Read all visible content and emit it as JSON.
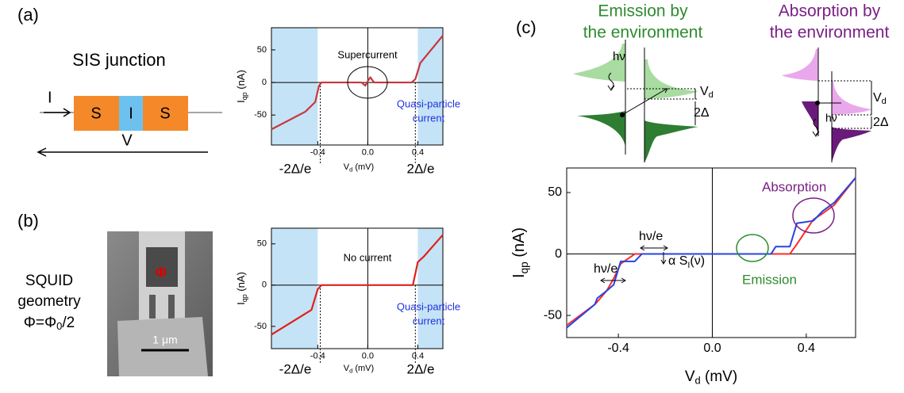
{
  "panel_labels": [
    "(a)",
    "(b)",
    "(c)"
  ],
  "sis": {
    "title": "SIS junction",
    "current": "I",
    "blocks": [
      "S",
      "I",
      "S"
    ],
    "voltage": "V"
  },
  "squid": {
    "lines": [
      "SQUID",
      "geometry"
    ],
    "flux": [
      "Φ=Φ",
      "0",
      "/2"
    ],
    "phi": "Φ",
    "scale": "1 μm"
  },
  "schematic": {
    "emission": [
      "Emission by",
      "the environment"
    ],
    "absorption": [
      "Absorption by",
      "the environment"
    ],
    "hv": "hν",
    "vd": [
      "V",
      "d"
    ],
    "gap": "2Δ"
  },
  "chart_data": [
    {
      "type": "line",
      "xlabel": [
        "V",
        "d",
        " (mV)"
      ],
      "ylabel": [
        "I",
        "qp",
        " (nA)"
      ],
      "xlim": [
        -0.77,
        0.6
      ],
      "ylim": [
        -96,
        84
      ],
      "xticks": [
        -0.4,
        {
          "value": 0,
          "label": "0.0"
        },
        0.4
      ],
      "yticks": [
        -50,
        0,
        50
      ],
      "zero_lines": true,
      "shade": [
        [
          -0.77,
          -0.4
        ],
        [
          0.4,
          0.6
        ]
      ],
      "shade_color": "#c5e3f6",
      "gap_lines": [
        -0.38,
        0.38
      ],
      "x": [
        -0.77,
        -0.5,
        -0.42,
        -0.39,
        -0.37,
        -0.05,
        -0.02,
        0,
        0.02,
        0.05,
        0.35,
        0.38,
        0.42,
        0.6
      ],
      "series": [
        {
          "color": "#c8373f",
          "values": [
            -72,
            -45,
            -30,
            -5,
            0,
            0,
            -5,
            2,
            8,
            0,
            0,
            5,
            30,
            72
          ]
        }
      ],
      "annotations": [
        "Supercurrent",
        "Quasi-particle",
        "current",
        "-2Δ/e",
        "2Δ/e"
      ]
    },
    {
      "type": "line",
      "xlabel": [
        "V",
        "d",
        " (mV)"
      ],
      "ylabel": [
        "I",
        "qp",
        " (nA)"
      ],
      "xlim": [
        -0.77,
        0.6
      ],
      "ylim": [
        -77,
        69
      ],
      "xticks": [
        -0.4,
        {
          "value": 0,
          "label": "0.0"
        },
        0.4
      ],
      "yticks": [
        -50,
        0,
        50
      ],
      "zero_lines": true,
      "shade": [
        [
          -0.77,
          -0.4
        ],
        [
          0.4,
          0.6
        ]
      ],
      "shade_color": "#c5e3f6",
      "gap_lines": [
        -0.38,
        0.38
      ],
      "x": [
        -0.77,
        -0.45,
        -0.4,
        -0.37,
        0.36,
        0.4,
        0.45,
        0.6
      ],
      "series": [
        {
          "color": "#e0201a",
          "values": [
            -60,
            -30,
            -5,
            0,
            0,
            28,
            35,
            61
          ]
        }
      ],
      "annotations": [
        "No current",
        "Quasi-particle",
        "current",
        "-2Δ/e",
        "2Δ/e"
      ]
    },
    {
      "type": "line",
      "xlabel": [
        "V",
        "d",
        " (mV)"
      ],
      "ylabel": [
        "I",
        "qp",
        " (nA)"
      ],
      "xlim": [
        -0.62,
        0.61
      ],
      "ylim": [
        -68,
        70
      ],
      "xticks": [
        -0.4,
        {
          "value": 0,
          "label": "0.0"
        },
        0.4
      ],
      "yticks": [
        -50,
        0,
        50
      ],
      "zero_lines": true,
      "x": [
        -0.62,
        -0.5,
        -0.49,
        -0.45,
        -0.42,
        -0.39,
        -0.33,
        -0.3,
        0.25,
        0.27,
        0.33,
        0.36,
        0.43,
        0.47,
        0.52,
        0.61
      ],
      "series": [
        {
          "color": "#ff2a2a",
          "values": [
            -58,
            -41,
            -39,
            -30,
            -20,
            -8,
            0,
            0,
            0,
            0,
            0,
            8,
            28,
            33,
            40,
            62
          ]
        },
        {
          "color": "#2545e0",
          "values": [
            -60,
            -41,
            -36,
            -30,
            -25,
            -6,
            -6,
            0,
            0,
            6,
            6,
            25,
            27,
            35,
            42,
            62
          ]
        }
      ],
      "annotations": [
        "Absorption",
        "Emission",
        "hν/e",
        "hν/e",
        [
          "α S",
          "I",
          "(ν)"
        ]
      ]
    }
  ]
}
